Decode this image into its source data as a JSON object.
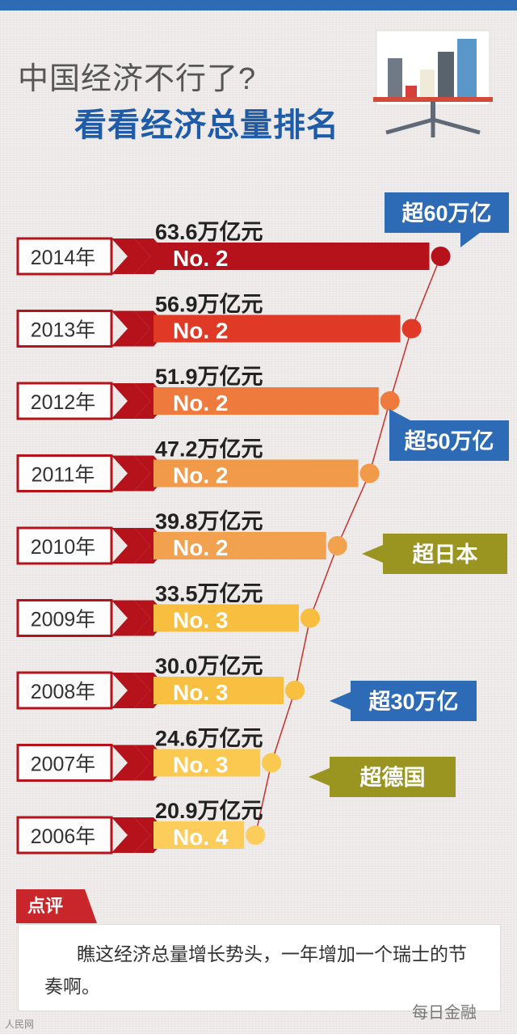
{
  "header": {
    "title_line1": "中国经济不行了?",
    "title_line2": "看看经济总量排名"
  },
  "chart_data": {
    "type": "bar",
    "orientation": "horizontal",
    "unit": "万亿元",
    "categories": [
      "2014年",
      "2013年",
      "2012年",
      "2011年",
      "2010年",
      "2009年",
      "2008年",
      "2007年",
      "2006年"
    ],
    "values": [
      63.6,
      56.9,
      51.9,
      47.2,
      39.8,
      33.5,
      30.0,
      24.6,
      20.9
    ],
    "value_labels": [
      "63.6万亿元",
      "56.9万亿元",
      "51.9万亿元",
      "47.2万亿元",
      "39.8万亿元",
      "33.5万亿元",
      "30.0万亿元",
      "24.6万亿元",
      "20.9万亿元"
    ],
    "ranks": [
      "No. 2",
      "No. 2",
      "No. 2",
      "No. 2",
      "No. 2",
      "No. 3",
      "No. 3",
      "No. 3",
      "No. 4"
    ],
    "bar_colors": [
      "#b5121b",
      "#e03a27",
      "#ef7a3d",
      "#f19a4a",
      "#f2a24f",
      "#f8be3f",
      "#f8bf41",
      "#fbc850",
      "#fccd5a"
    ],
    "annotations": [
      {
        "text": "超60万亿",
        "year": "2014年",
        "color": "#2e6bb6"
      },
      {
        "text": "超50万亿",
        "year": "2012年",
        "color": "#2e6bb6"
      },
      {
        "text": "超日本",
        "year": "2010年",
        "color": "#9a9420"
      },
      {
        "text": "超30万亿",
        "year": "2008年",
        "color": "#2e6bb6"
      },
      {
        "text": "超德国",
        "year": "2007年",
        "color": "#9a9420"
      }
    ]
  },
  "comment": {
    "tag": "点评",
    "text": "瞧这经济总量增长势头，一年增加一个瑞士的节奏啊。"
  },
  "footer": {
    "left": "人民网",
    "right": "每日金融"
  }
}
